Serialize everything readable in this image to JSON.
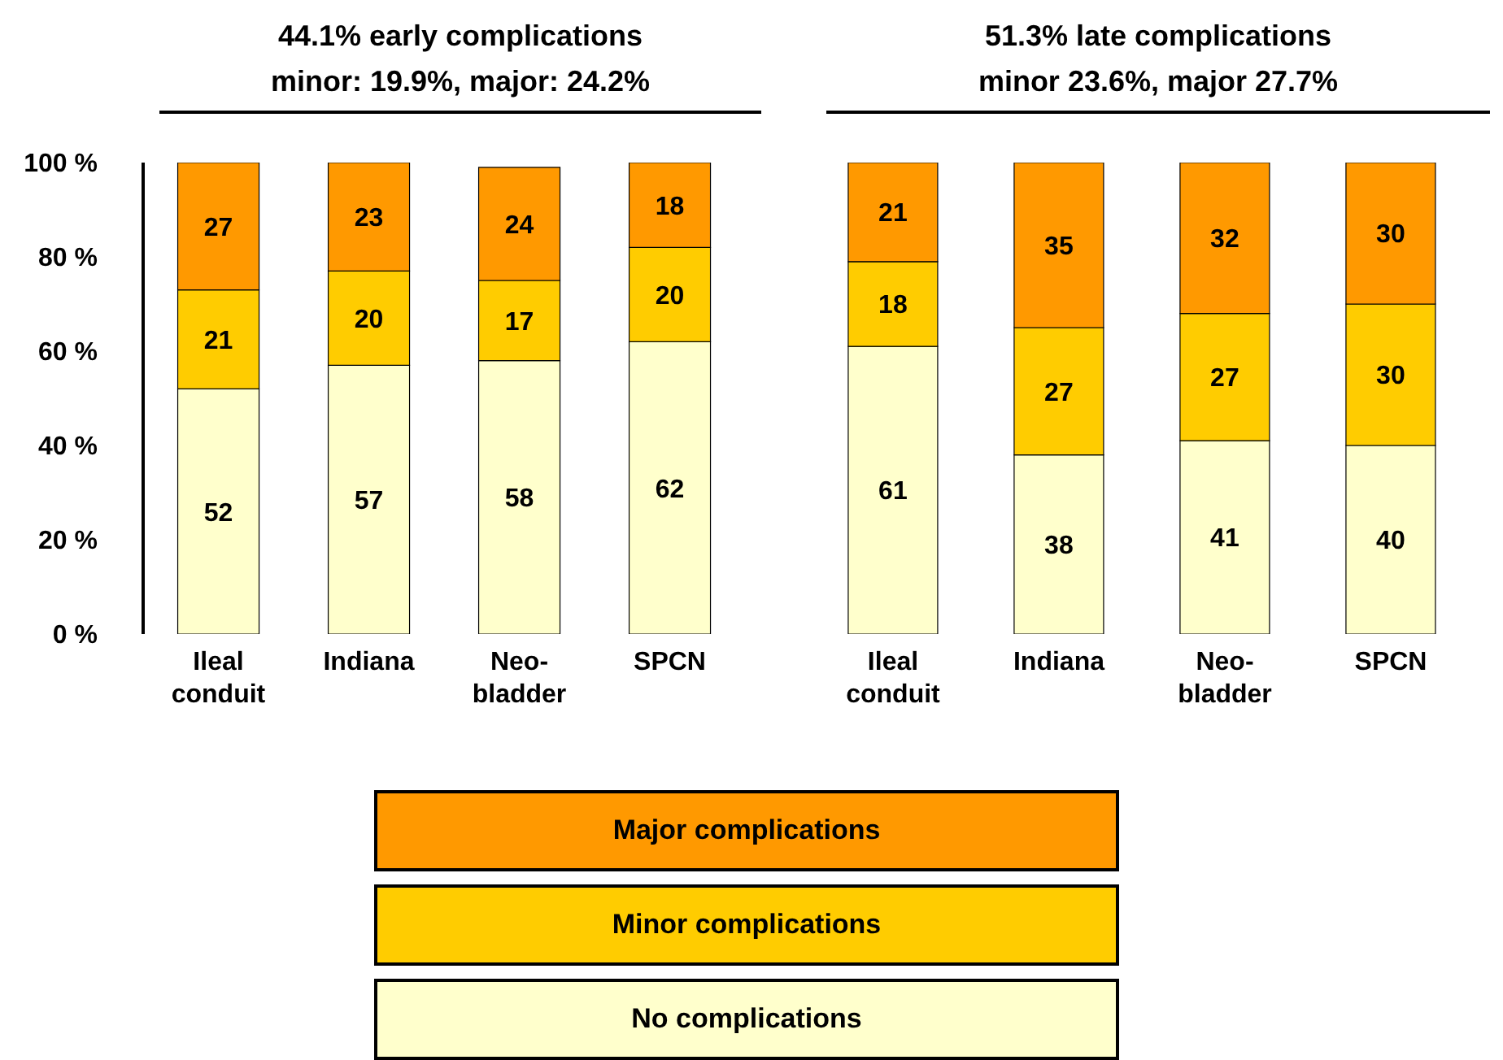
{
  "chart_data": [
    {
      "type": "bar",
      "title": "44.1% early complications",
      "subtitle": "minor: 19.9%, major: 24.2%",
      "categories": [
        "Ileal conduit",
        "Indiana",
        "Neo-bladder",
        "SPCN"
      ],
      "stacked": true,
      "data_labels": true,
      "legend": "bottom",
      "grid": false,
      "ylim": [
        0,
        100
      ],
      "yticks": [
        {
          "value": 0,
          "label": "0 %"
        },
        {
          "value": 20,
          "label": "20 %"
        },
        {
          "value": 40,
          "label": "40 %"
        },
        {
          "value": 60,
          "label": "60 %"
        },
        {
          "value": 80,
          "label": "80 %"
        },
        {
          "value": 100,
          "label": "100 %"
        }
      ],
      "series": [
        {
          "name": "No complications",
          "color": "#ffffcc",
          "values": [
            52,
            57,
            58,
            62
          ]
        },
        {
          "name": "Minor complications",
          "color": "#ffcc00",
          "values": [
            21,
            20,
            17,
            20
          ]
        },
        {
          "name": "Major complications",
          "color": "#ff9900",
          "values": [
            27,
            23,
            24,
            18
          ]
        }
      ]
    },
    {
      "type": "bar",
      "title": "51.3% late complications",
      "subtitle": "minor 23.6%, major 27.7%",
      "categories": [
        "Ileal conduit",
        "Indiana",
        "Neo-bladder",
        "SPCN"
      ],
      "stacked": true,
      "data_labels": true,
      "grid": false,
      "tick_labels": "x",
      "ylim": [
        0,
        100
      ],
      "series": [
        {
          "color": "#ffffcc",
          "values": [
            61,
            38,
            41,
            40
          ]
        },
        {
          "color": "#ffcc00",
          "values": [
            18,
            27,
            27,
            30
          ]
        },
        {
          "color": "#ff9900",
          "values": [
            21,
            35,
            32,
            30
          ]
        }
      ]
    }
  ]
}
